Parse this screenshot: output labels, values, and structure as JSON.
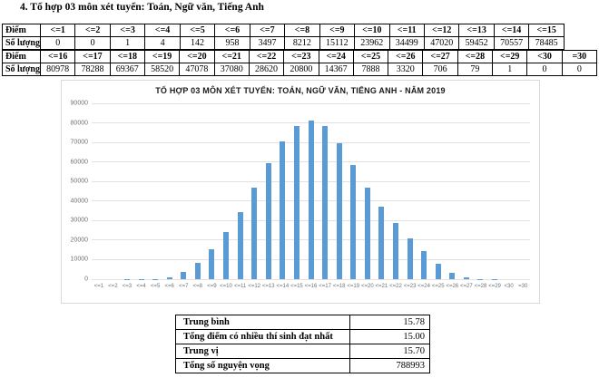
{
  "page": {
    "heading": "4. Tổ hợp 03 môn xét tuyển: Toán, Ngữ văn, Tiếng Anh"
  },
  "score_table": {
    "score_row_label": "Điểm",
    "count_row_label": "Số lượng",
    "part1": {
      "headers": [
        "<=1",
        "<=2",
        "<=3",
        "<=4",
        "<=5",
        "<=6",
        "<=7",
        "<=8",
        "<=9",
        "<=10",
        "<=11",
        "<=12",
        "<=13",
        "<=14",
        "<=15"
      ],
      "values": [
        "0",
        "0",
        "1",
        "4",
        "142",
        "958",
        "3497",
        "8212",
        "15112",
        "23962",
        "34499",
        "47020",
        "59452",
        "70557",
        "78485"
      ]
    },
    "part2": {
      "headers": [
        "<=16",
        "<=17",
        "<=18",
        "<=19",
        "<=20",
        "<=21",
        "<=22",
        "<=23",
        "<=24",
        "<=25",
        "<=26",
        "<=27",
        "<=28",
        "<=29",
        "<30",
        "=30"
      ],
      "values": [
        "80978",
        "78288",
        "69367",
        "58520",
        "47078",
        "37080",
        "28620",
        "20800",
        "14367",
        "7888",
        "3320",
        "706",
        "79",
        "1",
        "0",
        "0"
      ]
    }
  },
  "chart_data": {
    "type": "bar",
    "title": "TỔ HỢP 03 MÔN XÉT TUYỂN: TOÁN, NGỮ VĂN, TIẾNG ANH - NĂM 2019",
    "categories": [
      "<=1",
      "<=2",
      "<=3",
      "<=4",
      "<=5",
      "<=6",
      "<=7",
      "<=8",
      "<=9",
      "<=10",
      "<=11",
      "<=12",
      "<=13",
      "<=14",
      "<=15",
      "<=16",
      "<=17",
      "<=18",
      "<=19",
      "<=20",
      "<=21",
      "<=22",
      "<=23",
      "<=24",
      "<=25",
      "<=26",
      "<=27",
      "<=28",
      "<=29",
      "<30",
      "=30"
    ],
    "values": [
      0,
      0,
      1,
      4,
      142,
      958,
      3497,
      8212,
      15112,
      23962,
      34499,
      47020,
      59452,
      70557,
      78485,
      80978,
      78288,
      69367,
      58520,
      47078,
      37080,
      28620,
      20800,
      14367,
      7888,
      3320,
      706,
      79,
      1,
      0,
      0
    ],
    "xlabel": "",
    "ylabel": "",
    "ylim": [
      0,
      90000
    ],
    "ytick_step": 10000,
    "grid": true,
    "legend": "none",
    "bar_color": "#5b9bd5",
    "gridline_color": "#e2e2e2",
    "axis_label_color": "#737373"
  },
  "summary_table": {
    "rows": [
      {
        "label": "Trung bình",
        "value": "15.78"
      },
      {
        "label": "Tổng điểm có nhiều thí sinh đạt nhất",
        "value": "15.00"
      },
      {
        "label": "Trung vị",
        "value": "15.70"
      },
      {
        "label": "Tổng số nguyện vọng",
        "value": "788993"
      }
    ]
  }
}
